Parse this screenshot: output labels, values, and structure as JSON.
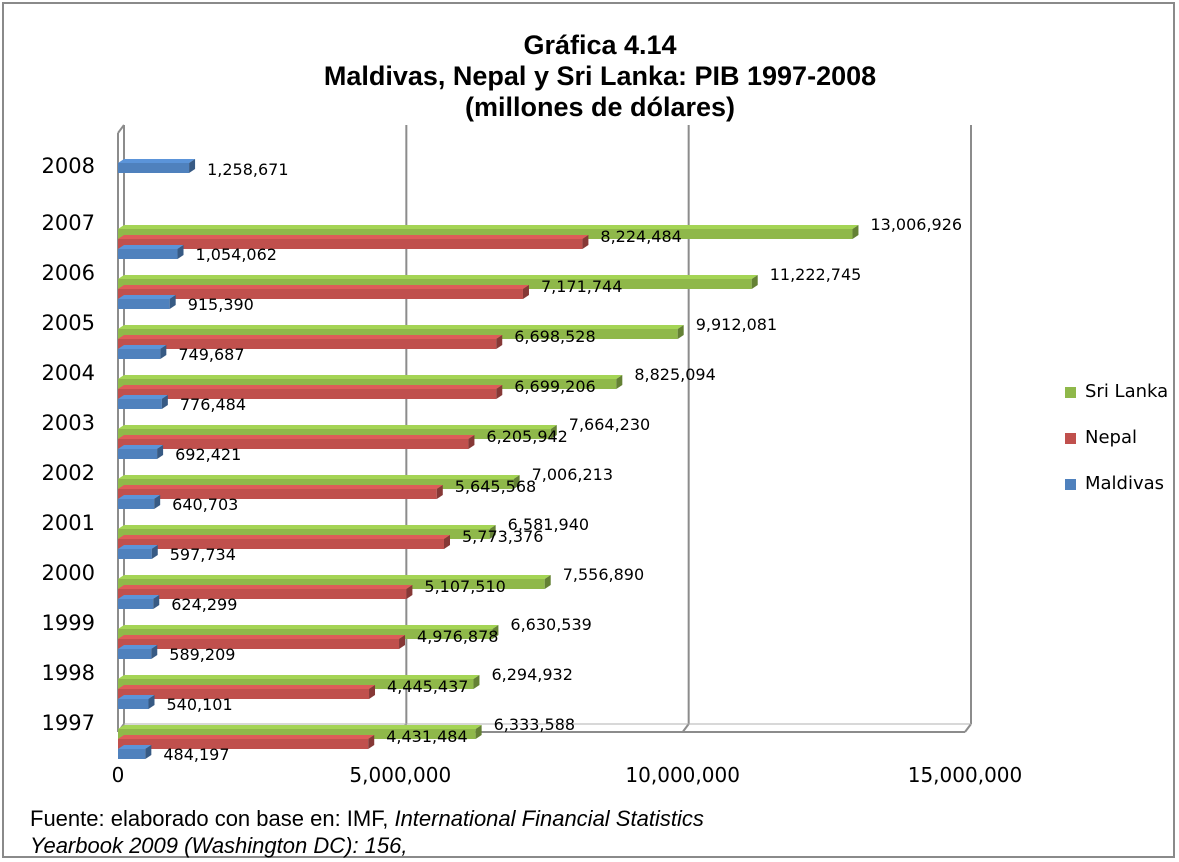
{
  "title_lines": [
    "Gráfica 4.14",
    "Maldivas, Nepal y Sri Lanka: PIB 1997-2008",
    "(millones de dólares)"
  ],
  "source": {
    "prefix": "Fuente: elaborado con base en: IMF, ",
    "italic_1": "International Financial Statistics",
    "italic_2": "Yearbook 2009 (Washington DC): 156,"
  },
  "colors": {
    "Sri Lanka": "#8fb84a",
    "Nepal": "#c0504d",
    "Maldivas": "#4f81bd"
  },
  "chart_data": {
    "type": "bar",
    "orientation": "horizontal",
    "style": "3d-clustered",
    "categories": [
      "2008",
      "2007",
      "2006",
      "2005",
      "2004",
      "2003",
      "2002",
      "2001",
      "2000",
      "1999",
      "1998",
      "1997"
    ],
    "series": [
      {
        "name": "Sri Lanka",
        "values": [
          null,
          13006926,
          11222745,
          9912081,
          8825094,
          7664230,
          7006213,
          6581940,
          7556890,
          6630539,
          6294932,
          6333588
        ]
      },
      {
        "name": "Nepal",
        "values": [
          null,
          8224484,
          7171744,
          6698528,
          6699206,
          6205942,
          5645568,
          5773376,
          5107510,
          4976878,
          4445437,
          4431484
        ]
      },
      {
        "name": "Maldivas",
        "values": [
          1258671,
          1054062,
          915390,
          749687,
          776484,
          692421,
          640703,
          597734,
          624299,
          589209,
          540101,
          484197
        ]
      }
    ],
    "data_labels": {
      "Sri Lanka": [
        "",
        "13,006,926",
        "11,222,745",
        "9,912,081",
        "8,825,094",
        "7,664,230",
        "7,006,213",
        "6,581,940",
        "7,556,890",
        "6,630,539",
        "6,294,932",
        "6,333,588"
      ],
      "Nepal": [
        "",
        "8,224,484",
        "7,171,744",
        "6,698,528",
        "6,699,206",
        "6,205,942",
        "5,645,568",
        "5,773,376",
        "5,107,510",
        "4,976,878",
        "4,445,437",
        "4,431,484"
      ],
      "Maldivas": [
        "1,258,671",
        "1,054,062",
        "915,390",
        "749,687",
        "776,484",
        "692,421",
        "640,703",
        "597,734",
        "624,299",
        "589,209",
        "540,101",
        "484,197"
      ]
    },
    "x_ticks": [
      0,
      5000000,
      10000000,
      15000000
    ],
    "x_tick_labels": [
      "0",
      "5,000,000",
      "10,000,000",
      "15,000,000"
    ],
    "xlim": [
      0,
      15000000
    ],
    "grid": true,
    "legend_position": "right",
    "legend_order": [
      "Sri Lanka",
      "Nepal",
      "Maldivas"
    ]
  }
}
